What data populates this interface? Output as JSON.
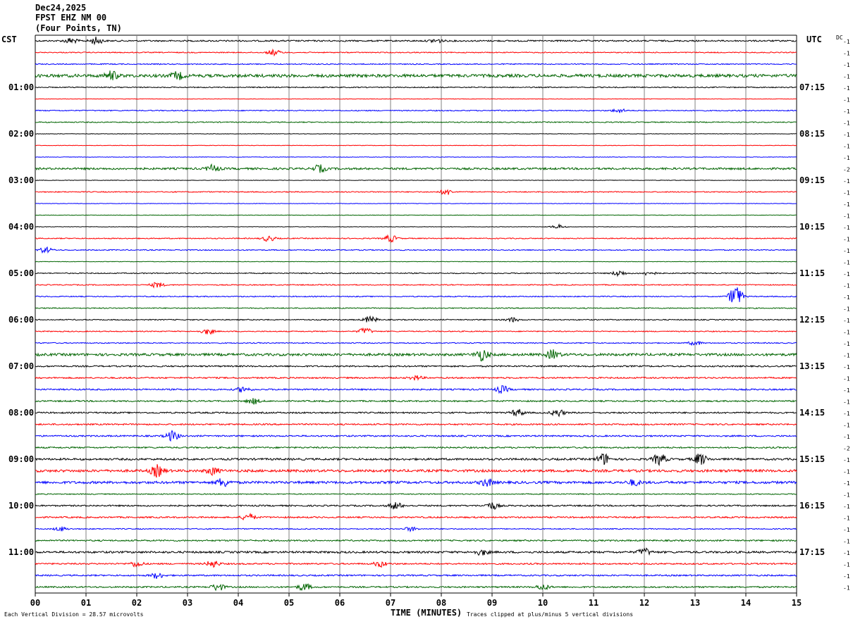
{
  "header": {
    "date": "Dec24,2025",
    "station": "FPST EHZ NM 00",
    "location": "(Four Points, TN)"
  },
  "left_zone": "CST",
  "right_zone": "UTC",
  "dc_label": "DC",
  "footer": {
    "scale_note": "Each Vertical Division =   28.57 microvolts",
    "clip_note": "Traces clipped at plus/minus 5 vertical divisions"
  },
  "colors": {
    "trace": [
      "#000000",
      "#ff0000",
      "#0000ff",
      "#006400"
    ],
    "grid": "#808080"
  },
  "chart_data": {
    "type": "line",
    "title": "",
    "xlabel": "TIME (MINUTES)",
    "ylabel": "",
    "x_ticks": [
      "00",
      "01",
      "02",
      "03",
      "04",
      "05",
      "06",
      "07",
      "08",
      "09",
      "10",
      "11",
      "12",
      "13",
      "14",
      "15"
    ],
    "xlim": [
      0,
      15
    ],
    "grid": "vertical lines at each minute",
    "trace_count": 48,
    "minutes_per_trace": 15,
    "left_hour_labels": [
      "01:00",
      "02:00",
      "03:00",
      "04:00",
      "05:00",
      "06:00",
      "07:00",
      "08:00",
      "09:00",
      "10:00",
      "11:00"
    ],
    "right_hour_labels": [
      "07:15",
      "08:15",
      "09:15",
      "10:15",
      "11:15",
      "12:15",
      "13:15",
      "14:15",
      "15:15",
      "16:15",
      "17:15"
    ],
    "right_offsets": [
      "-1",
      "-1",
      "-1",
      "-1",
      "-1",
      "-1",
      "-1",
      "-1",
      "-1",
      "-1",
      "-1",
      "-2",
      "-1",
      "-1",
      "-1",
      "-1",
      "-1",
      "-1",
      "-1",
      "-1",
      "-1",
      "-1",
      "-1",
      "-1",
      "-1",
      "-1",
      "-1",
      "-1",
      "-1",
      "-1",
      "-1",
      "-1",
      "-1",
      "-1",
      "-1",
      "-2",
      "-1",
      "-1",
      "-1",
      "-1",
      "-1",
      "-1",
      "-1",
      "-1",
      "-1",
      "-1",
      "-1",
      "-1"
    ],
    "trace_noise_level": [
      3,
      2,
      2,
      6,
      2,
      1,
      2,
      2,
      1,
      1,
      1,
      4,
      1,
      2,
      1,
      1,
      1,
      2,
      2,
      1,
      2,
      2,
      2,
      2,
      2,
      2,
      2,
      5,
      3,
      3,
      3,
      3,
      3,
      3,
      3,
      3,
      4,
      5,
      5,
      2,
      3,
      3,
      2,
      3,
      4,
      3,
      3,
      3
    ],
    "events": [
      {
        "trace": 0,
        "minute": 0.7,
        "amp": 4
      },
      {
        "trace": 0,
        "minute": 1.2,
        "amp": 5
      },
      {
        "trace": 0,
        "minute": 7.9,
        "amp": 3
      },
      {
        "trace": 1,
        "minute": 4.7,
        "amp": 4
      },
      {
        "trace": 3,
        "minute": 1.5,
        "amp": 6
      },
      {
        "trace": 3,
        "minute": 2.8,
        "amp": 5
      },
      {
        "trace": 6,
        "minute": 11.5,
        "amp": 3
      },
      {
        "trace": 11,
        "minute": 3.5,
        "amp": 5
      },
      {
        "trace": 11,
        "minute": 5.6,
        "amp": 5
      },
      {
        "trace": 13,
        "minute": 8.1,
        "amp": 4
      },
      {
        "trace": 16,
        "minute": 10.3,
        "amp": 3
      },
      {
        "trace": 17,
        "minute": 4.6,
        "amp": 4
      },
      {
        "trace": 17,
        "minute": 7.0,
        "amp": 5
      },
      {
        "trace": 18,
        "minute": 0.2,
        "amp": 4
      },
      {
        "trace": 20,
        "minute": 11.5,
        "amp": 4
      },
      {
        "trace": 20,
        "minute": 12.1,
        "amp": 3
      },
      {
        "trace": 21,
        "minute": 2.4,
        "amp": 4
      },
      {
        "trace": 22,
        "minute": 13.8,
        "amp": 16
      },
      {
        "trace": 24,
        "minute": 6.6,
        "amp": 5
      },
      {
        "trace": 24,
        "minute": 9.4,
        "amp": 3
      },
      {
        "trace": 25,
        "minute": 3.4,
        "amp": 4
      },
      {
        "trace": 25,
        "minute": 6.5,
        "amp": 5
      },
      {
        "trace": 26,
        "minute": 13.0,
        "amp": 3
      },
      {
        "trace": 27,
        "minute": 8.8,
        "amp": 8
      },
      {
        "trace": 27,
        "minute": 10.2,
        "amp": 6
      },
      {
        "trace": 29,
        "minute": 7.5,
        "amp": 3
      },
      {
        "trace": 30,
        "minute": 4.1,
        "amp": 4
      },
      {
        "trace": 30,
        "minute": 9.2,
        "amp": 5
      },
      {
        "trace": 31,
        "minute": 4.3,
        "amp": 4
      },
      {
        "trace": 32,
        "minute": 9.5,
        "amp": 5
      },
      {
        "trace": 32,
        "minute": 10.3,
        "amp": 5
      },
      {
        "trace": 34,
        "minute": 2.7,
        "amp": 7
      },
      {
        "trace": 36,
        "minute": 11.2,
        "amp": 8
      },
      {
        "trace": 36,
        "minute": 12.3,
        "amp": 8
      },
      {
        "trace": 36,
        "minute": 13.1,
        "amp": 8
      },
      {
        "trace": 37,
        "minute": 2.4,
        "amp": 8
      },
      {
        "trace": 37,
        "minute": 3.5,
        "amp": 5
      },
      {
        "trace": 38,
        "minute": 3.7,
        "amp": 6
      },
      {
        "trace": 38,
        "minute": 8.9,
        "amp": 5
      },
      {
        "trace": 38,
        "minute": 11.8,
        "amp": 4
      },
      {
        "trace": 40,
        "minute": 7.1,
        "amp": 5
      },
      {
        "trace": 40,
        "minute": 9.0,
        "amp": 5
      },
      {
        "trace": 41,
        "minute": 4.2,
        "amp": 5
      },
      {
        "trace": 42,
        "minute": 0.5,
        "amp": 3
      },
      {
        "trace": 42,
        "minute": 7.4,
        "amp": 3
      },
      {
        "trace": 44,
        "minute": 8.8,
        "amp": 4
      },
      {
        "trace": 44,
        "minute": 12.0,
        "amp": 5
      },
      {
        "trace": 45,
        "minute": 2.0,
        "amp": 4
      },
      {
        "trace": 45,
        "minute": 3.5,
        "amp": 5
      },
      {
        "trace": 45,
        "minute": 6.8,
        "amp": 4
      },
      {
        "trace": 46,
        "minute": 2.4,
        "amp": 4
      },
      {
        "trace": 47,
        "minute": 3.6,
        "amp": 5
      },
      {
        "trace": 47,
        "minute": 5.3,
        "amp": 5
      },
      {
        "trace": 47,
        "minute": 10.0,
        "amp": 4
      }
    ]
  }
}
